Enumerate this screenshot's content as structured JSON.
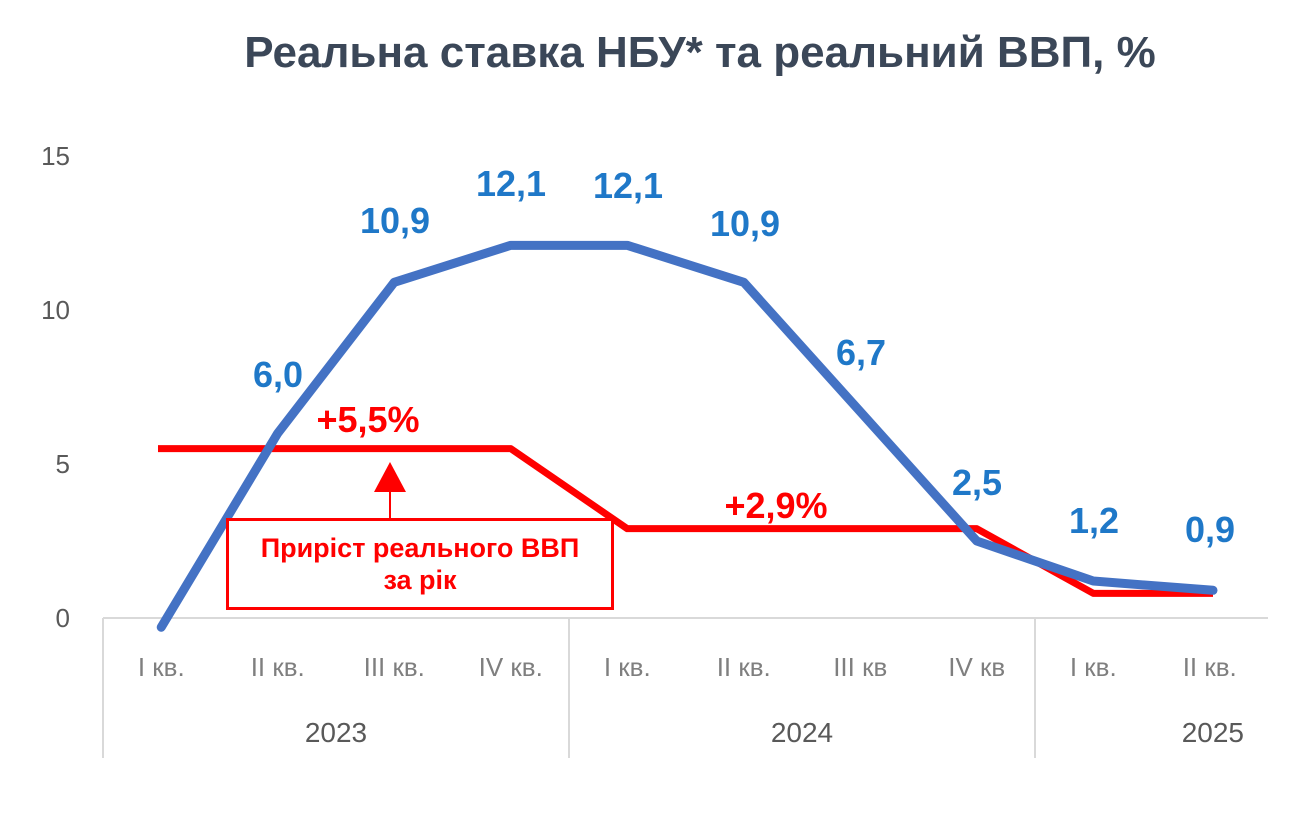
{
  "chart_data": {
    "type": "line",
    "title": "Реальна ставка НБУ* та реальний ВВП, %",
    "xlabel": "",
    "ylabel": "",
    "ylim": [
      0,
      15
    ],
    "yticks": [
      "0",
      "5",
      "10",
      "15"
    ],
    "categories": [
      "I кв.",
      "II кв.",
      "III кв.",
      "IV кв.",
      "I кв.",
      "II кв.",
      "III кв",
      "IV кв",
      "I кв.",
      "II кв."
    ],
    "years": [
      {
        "label": "2023",
        "count": 4
      },
      {
        "label": "2024",
        "count": 4
      },
      {
        "label": "2025",
        "count": 2
      }
    ],
    "series": [
      {
        "values": [
          -0.3,
          6.0,
          10.9,
          12.1,
          12.1,
          10.9,
          6.7,
          2.5,
          1.2,
          0.9
        ],
        "labels": [
          "",
          "6,0",
          "10,9",
          "12,1",
          "12,1",
          "10,9",
          "6,7",
          "2,5",
          "1,2",
          "0,9"
        ],
        "color": "#4472c4"
      },
      {
        "values": [
          5.5,
          5.5,
          5.5,
          5.5,
          2.9,
          2.9,
          2.9,
          2.9,
          0.8,
          0.8
        ],
        "color": "#ff0000"
      }
    ],
    "annotations": {
      "gdp_2023": "+5,5%",
      "gdp_2024": "+2,9%",
      "box_line1": "Приріст реального ВВП",
      "box_line2": "за рік"
    },
    "grid": false,
    "legend": "none"
  }
}
